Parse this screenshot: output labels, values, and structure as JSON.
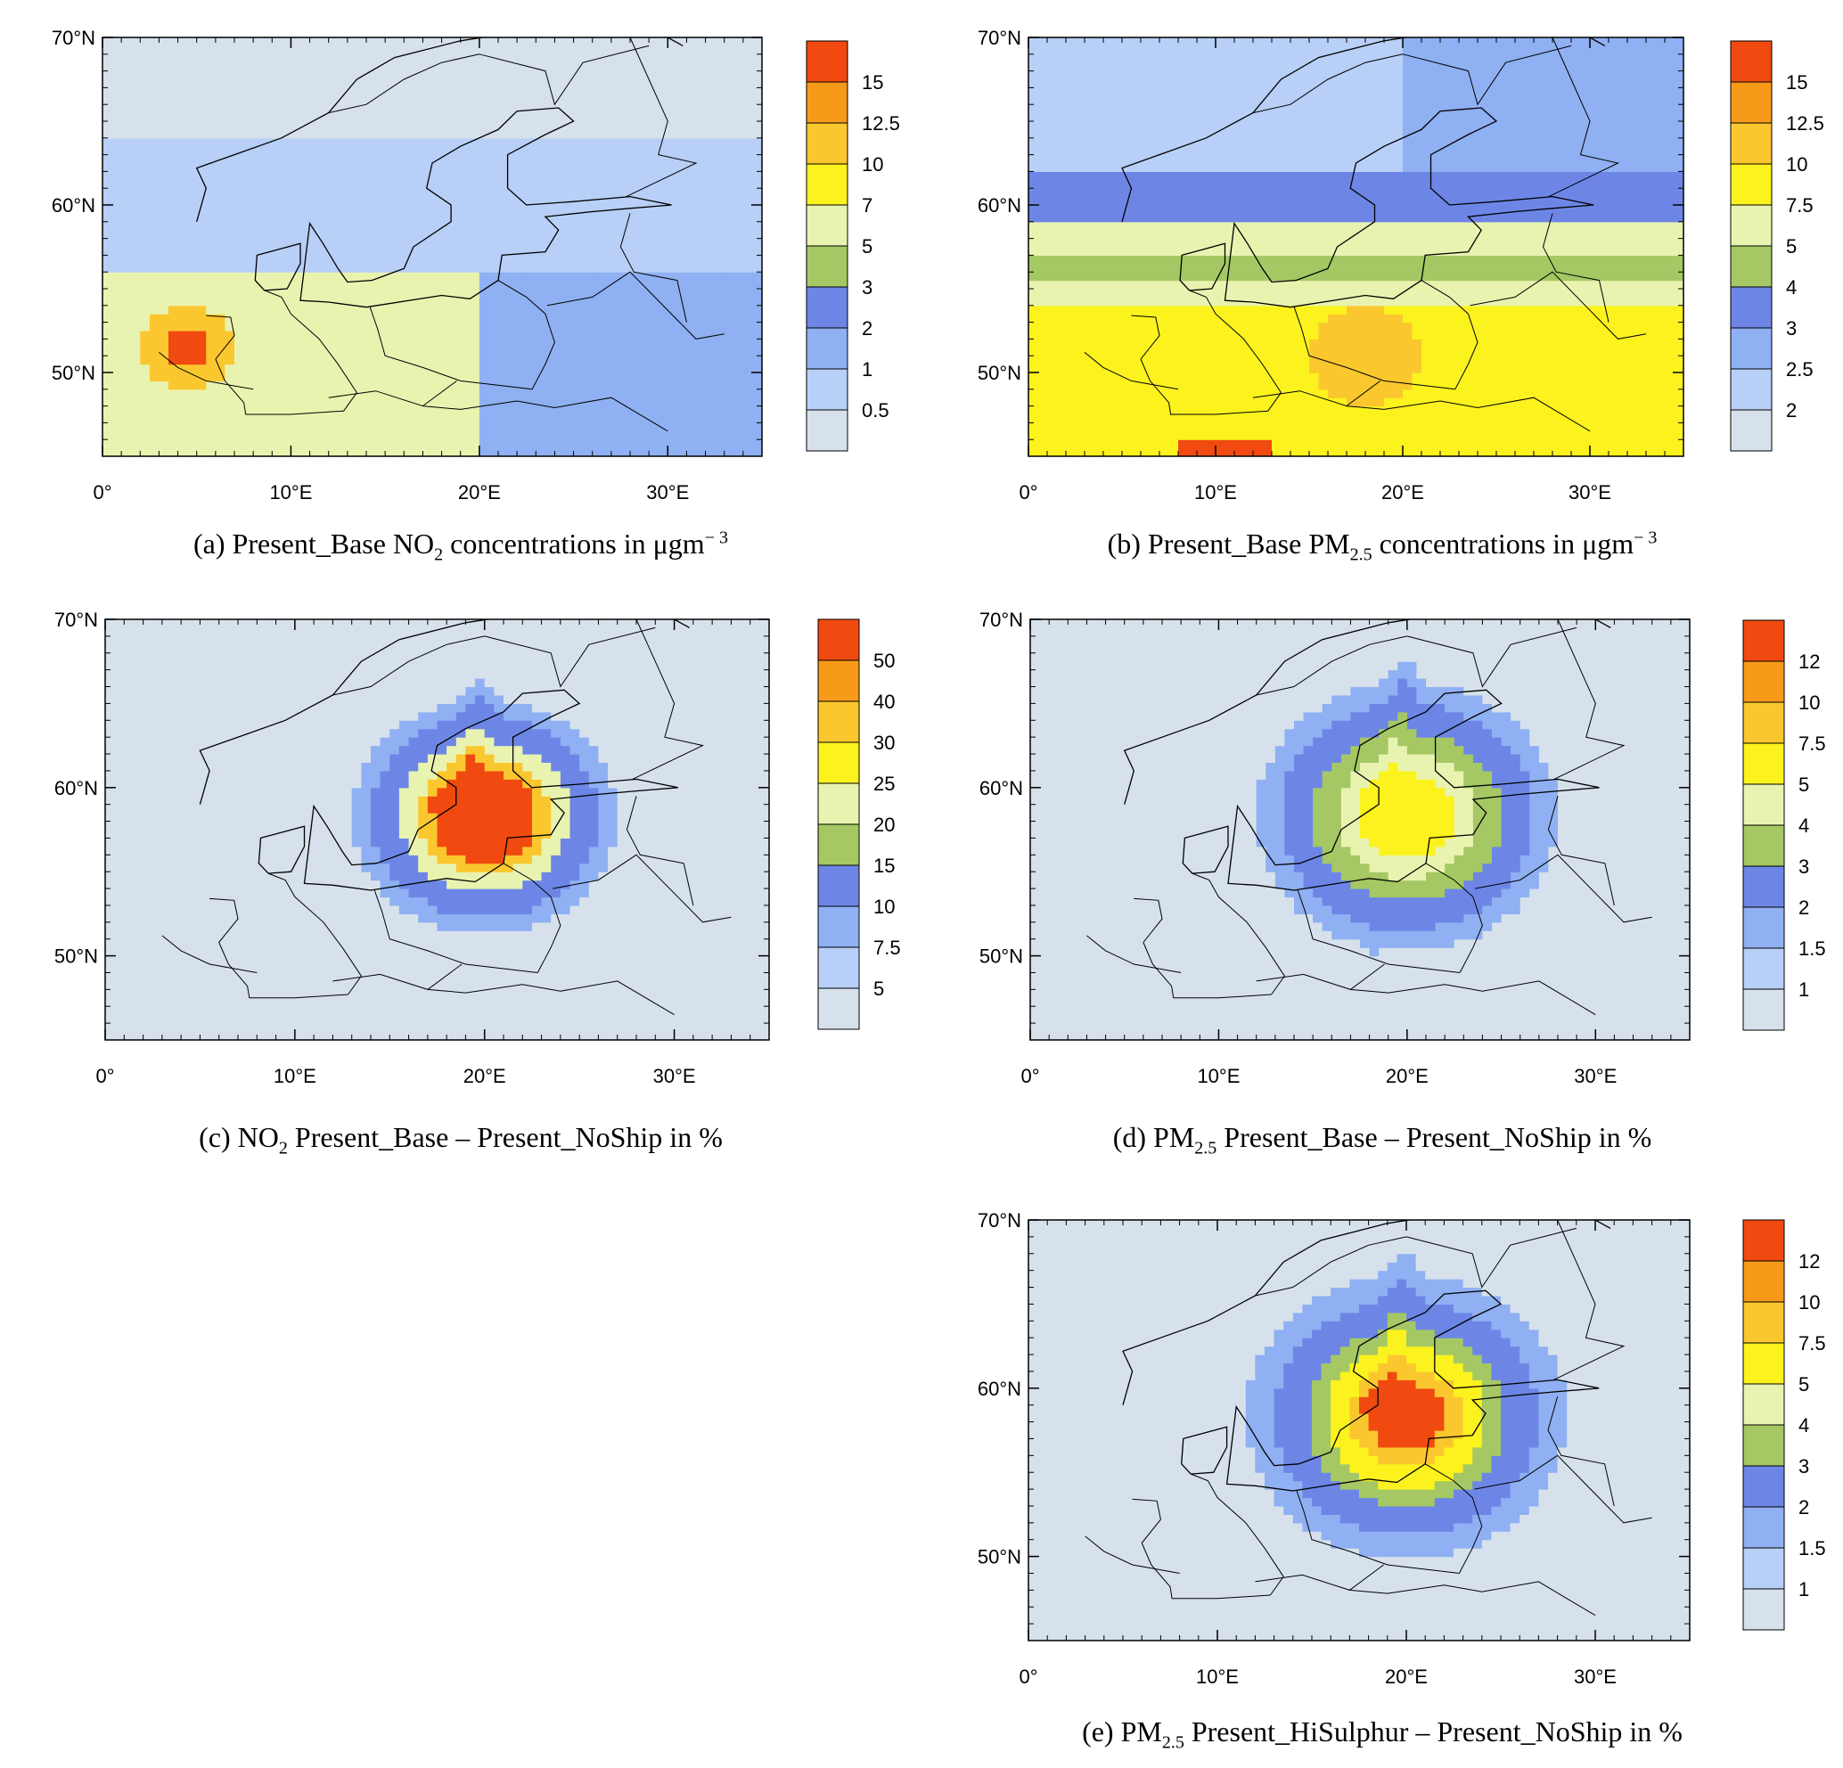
{
  "axes": {
    "lat_labels": [
      "70°N",
      "60°N",
      "50°N"
    ],
    "lon_labels": [
      "0°",
      "10°E",
      "20°E",
      "30°E"
    ]
  },
  "panels": [
    {
      "id": "a",
      "caption": {
        "prefix": "(a) Present_Base NO",
        "sub": "2",
        "middle": " concentrations in μgm",
        "sup": "− 3",
        "suffix": ""
      },
      "colorbar": {
        "levels": [
          "15",
          "12.5",
          "10",
          "7",
          "5",
          "3",
          "2",
          "1",
          "0.5"
        ],
        "colors": [
          "#f04a10",
          "#f79a1a",
          "#fbc72e",
          "#fbf21e",
          "#e9f3b0",
          "#a5c864",
          "#6d86e6",
          "#8fb0f2",
          "#b8cff7",
          "#d6e1ec"
        ]
      },
      "field_type": "no2_base"
    },
    {
      "id": "b",
      "caption": {
        "prefix": "(b) Present_Base PM",
        "sub": "2.5",
        "middle": " concentrations in μgm",
        "sup": "− 3",
        "suffix": ""
      },
      "colorbar": {
        "levels": [
          "15",
          "12.5",
          "10",
          "7.5",
          "5",
          "4",
          "3",
          "2.5",
          "2"
        ],
        "colors": [
          "#f04a10",
          "#f79a1a",
          "#fbc72e",
          "#fbf21e",
          "#e9f3b0",
          "#a5c864",
          "#6d86e6",
          "#8fb0f2",
          "#b8cff7",
          "#d6e1ec"
        ]
      },
      "field_type": "pm_base"
    },
    {
      "id": "c",
      "caption": {
        "prefix": "(c) NO",
        "sub": "2",
        "middle": " Present_Base – Present_NoShip in %",
        "sup": "",
        "suffix": ""
      },
      "colorbar": {
        "levels": [
          "50",
          "40",
          "30",
          "25",
          "20",
          "15",
          "10",
          "7.5",
          "5"
        ],
        "colors": [
          "#f04a10",
          "#f79a1a",
          "#fbc72e",
          "#fbf21e",
          "#e9f3b0",
          "#a5c864",
          "#6d86e6",
          "#8fb0f2",
          "#b8cff7",
          "#d6e1ec"
        ]
      },
      "field_type": "no2_diff"
    },
    {
      "id": "d",
      "caption": {
        "prefix": "(d) PM",
        "sub": "2.5",
        "middle": " Present_Base – Present_NoShip in %",
        "sup": "",
        "suffix": ""
      },
      "colorbar": {
        "levels": [
          "12",
          "10",
          "7.5",
          "5",
          "4",
          "3",
          "2",
          "1.5",
          "1"
        ],
        "colors": [
          "#f04a10",
          "#f79a1a",
          "#fbc72e",
          "#fbf21e",
          "#e9f3b0",
          "#a5c864",
          "#6d86e6",
          "#8fb0f2",
          "#b8cff7",
          "#d6e1ec"
        ]
      },
      "field_type": "pm_diff"
    },
    {
      "id": "e",
      "caption": {
        "prefix": "(e) PM",
        "sub": "2.5",
        "middle": " Present_HiSulphur – Present_NoShip in %",
        "sup": "",
        "suffix": ""
      },
      "colorbar": {
        "levels": [
          "12",
          "10",
          "7.5",
          "5",
          "4",
          "3",
          "2",
          "1.5",
          "1"
        ],
        "colors": [
          "#f04a10",
          "#f79a1a",
          "#fbc72e",
          "#fbf21e",
          "#e9f3b0",
          "#a5c864",
          "#6d86e6",
          "#8fb0f2",
          "#b8cff7",
          "#d6e1ec"
        ]
      },
      "field_type": "pm_hisulphur"
    }
  ]
}
